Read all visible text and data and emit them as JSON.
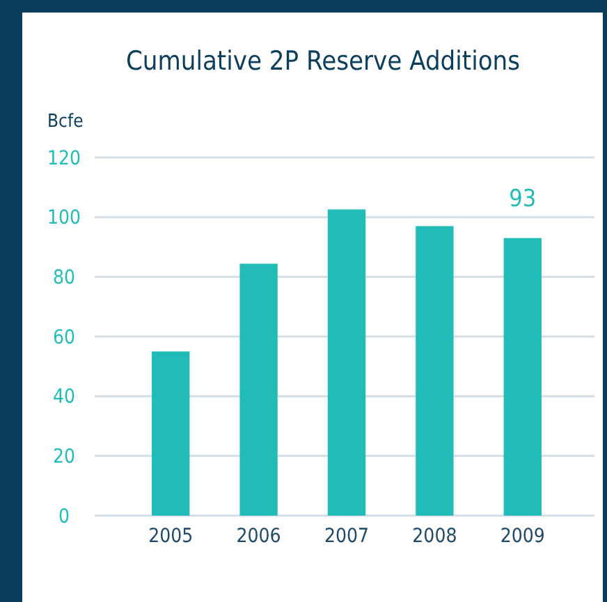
{
  "chart_data": {
    "type": "bar",
    "title": "Cumulative 2P Reserve Additions",
    "ylabel": "Bcfe",
    "categories": [
      "2005",
      "2006",
      "2007",
      "2008",
      "2009"
    ],
    "values": [
      55,
      84.4,
      102.6,
      97,
      93
    ],
    "value_labels": [
      null,
      null,
      null,
      null,
      "93"
    ],
    "color": "#22bcb8",
    "ylim": [
      0,
      120
    ],
    "yticks": [
      0,
      20,
      40,
      60,
      80,
      100,
      120
    ],
    "grid": "y"
  }
}
